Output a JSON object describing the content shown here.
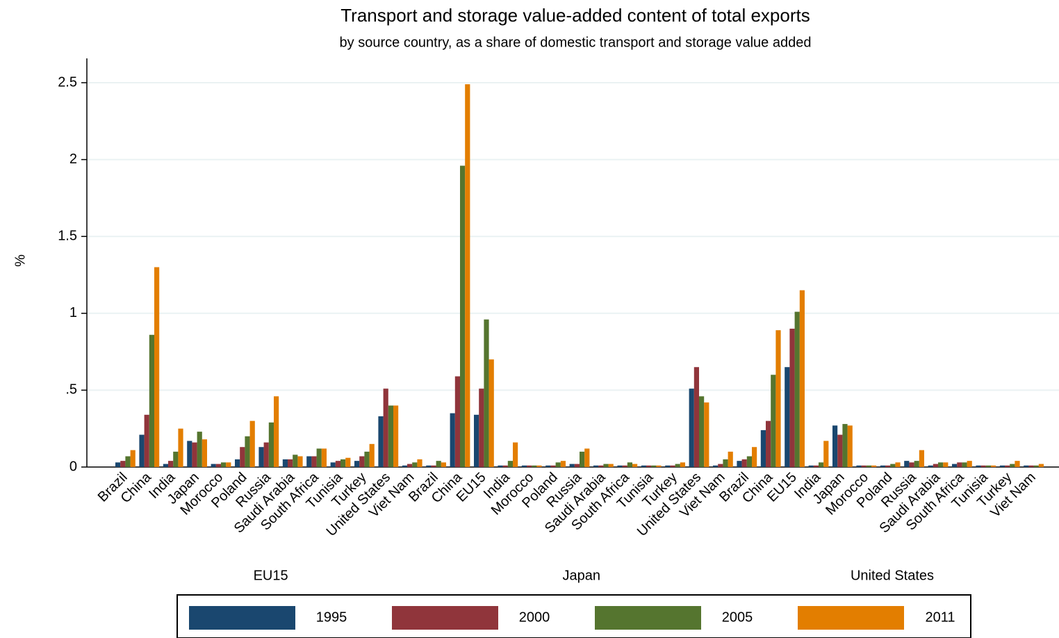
{
  "chart_data": {
    "type": "bar",
    "title": "Transport and storage value-added content of total exports",
    "subtitle": "by source country, as a share of domestic transport and storage value added",
    "y_label": "%",
    "groups": [
      {
        "name": "EU15",
        "categories": [
          "Brazil",
          "China",
          "India",
          "Japan",
          "Morocco",
          "Poland",
          "Russia",
          "Saudi Arabia",
          "South Africa",
          "Tunisia",
          "Turkey",
          "United States",
          "Viet Nam"
        ]
      },
      {
        "name": "Japan",
        "categories": [
          "Brazil",
          "China",
          "EU15",
          "India",
          "Morocco",
          "Poland",
          "Russia",
          "Saudi Arabia",
          "South Africa",
          "Tunisia",
          "Turkey",
          "United States",
          "Viet Nam"
        ]
      },
      {
        "name": "United States",
        "categories": [
          "Brazil",
          "China",
          "EU15",
          "India",
          "Japan",
          "Morocco",
          "Poland",
          "Russia",
          "Saudi Arabia",
          "South Africa",
          "Tunisia",
          "Turkey",
          "Viet Nam"
        ]
      }
    ],
    "series": [
      {
        "name": "1995",
        "color": "#1a476f",
        "values": [
          0.03,
          0.21,
          0.02,
          0.17,
          0.02,
          0.05,
          0.13,
          0.05,
          0.07,
          0.03,
          0.04,
          0.33,
          0.01,
          0.01,
          0.35,
          0.34,
          0.01,
          0.01,
          0.01,
          0.02,
          0.01,
          0.01,
          0.01,
          0.01,
          0.51,
          0.01,
          0.04,
          0.24,
          0.65,
          0.01,
          0.27,
          0.01,
          0.01,
          0.04,
          0.01,
          0.02,
          0.01,
          0.01,
          0.01
        ]
      },
      {
        "name": "2000",
        "color": "#90353b",
        "values": [
          0.04,
          0.34,
          0.04,
          0.16,
          0.02,
          0.13,
          0.16,
          0.05,
          0.07,
          0.04,
          0.07,
          0.51,
          0.02,
          0.01,
          0.59,
          0.51,
          0.01,
          0.01,
          0.01,
          0.02,
          0.01,
          0.01,
          0.01,
          0.01,
          0.65,
          0.02,
          0.05,
          0.3,
          0.9,
          0.01,
          0.21,
          0.01,
          0.01,
          0.03,
          0.02,
          0.03,
          0.01,
          0.01,
          0.01
        ]
      },
      {
        "name": "2005",
        "color": "#55752f",
        "values": [
          0.07,
          0.86,
          0.1,
          0.23,
          0.03,
          0.2,
          0.29,
          0.08,
          0.12,
          0.05,
          0.1,
          0.4,
          0.03,
          0.04,
          1.96,
          0.96,
          0.04,
          0.01,
          0.03,
          0.1,
          0.02,
          0.03,
          0.01,
          0.02,
          0.46,
          0.05,
          0.07,
          0.6,
          1.01,
          0.03,
          0.28,
          0.01,
          0.02,
          0.04,
          0.03,
          0.03,
          0.01,
          0.02,
          0.01
        ]
      },
      {
        "name": "2011",
        "color": "#e37e00",
        "values": [
          0.11,
          1.3,
          0.25,
          0.18,
          0.03,
          0.3,
          0.46,
          0.07,
          0.12,
          0.06,
          0.15,
          0.4,
          0.05,
          0.03,
          2.49,
          0.7,
          0.16,
          0.01,
          0.04,
          0.12,
          0.02,
          0.02,
          0.01,
          0.03,
          0.42,
          0.1,
          0.13,
          0.89,
          1.15,
          0.17,
          0.27,
          0.01,
          0.03,
          0.11,
          0.03,
          0.04,
          0.01,
          0.04,
          0.02
        ]
      }
    ],
    "ylim": [
      0,
      2.5
    ],
    "yticks": [
      0,
      {
        "value": 0.5,
        "label": ".5"
      },
      1,
      1.5,
      2,
      2.5
    ],
    "grid": true
  }
}
